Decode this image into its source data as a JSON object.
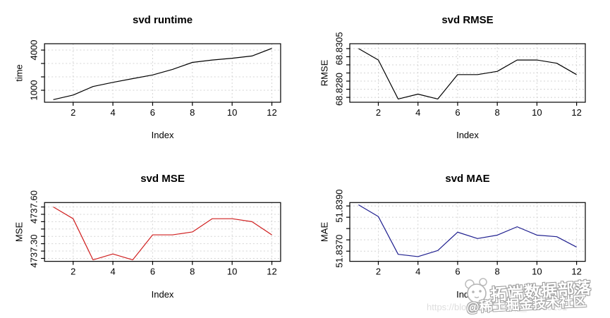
{
  "chart_data": [
    {
      "id": "svd-runtime",
      "type": "line",
      "title": "svd runtime",
      "xlabel": "Index",
      "ylabel": "time",
      "line_color": "#000000",
      "grid": true,
      "x": [
        1,
        2,
        3,
        4,
        5,
        6,
        7,
        8,
        9,
        10,
        11,
        12
      ],
      "values": [
        300,
        640,
        1280,
        1590,
        1870,
        2140,
        2560,
        3080,
        3260,
        3390,
        3560,
        4130
      ],
      "xlim": [
        0.56,
        12.44
      ],
      "ylim": [
        105,
        4475
      ],
      "xticks": [
        {
          "value": 2,
          "label": "2"
        },
        {
          "value": 4,
          "label": "4"
        },
        {
          "value": 6,
          "label": "6"
        },
        {
          "value": 8,
          "label": "8"
        },
        {
          "value": 10,
          "label": "10"
        },
        {
          "value": 12,
          "label": "12"
        }
      ],
      "yticks": [
        {
          "value": 1000,
          "label": "1000"
        },
        {
          "value": 2000,
          "label": ""
        },
        {
          "value": 3000,
          "label": ""
        },
        {
          "value": 4000,
          "label": "4000"
        }
      ]
    },
    {
      "id": "svd-rmse",
      "type": "line",
      "title": "svd RMSE",
      "xlabel": "Index",
      "ylabel": "RMSE",
      "line_color": "#000000",
      "grid": true,
      "x": [
        1,
        2,
        3,
        4,
        5,
        6,
        7,
        8,
        9,
        10,
        11,
        12
      ],
      "values": [
        68.8305,
        68.8298,
        68.8274,
        68.8277,
        68.8274,
        68.8289,
        68.8289,
        68.8291,
        68.8298,
        68.8298,
        68.8296,
        68.8289
      ],
      "xlim": [
        0.56,
        12.44
      ],
      "ylim": [
        68.8272,
        68.8308
      ],
      "xticks": [
        {
          "value": 2,
          "label": "2"
        },
        {
          "value": 4,
          "label": "4"
        },
        {
          "value": 6,
          "label": "6"
        },
        {
          "value": 8,
          "label": "8"
        },
        {
          "value": 10,
          "label": "10"
        },
        {
          "value": 12,
          "label": "12"
        }
      ],
      "yticks": [
        {
          "value": 68.8275,
          "label": ""
        },
        {
          "value": 68.828,
          "label": "68.8280"
        },
        {
          "value": 68.8285,
          "label": ""
        },
        {
          "value": 68.829,
          "label": ""
        },
        {
          "value": 68.8295,
          "label": ""
        },
        {
          "value": 68.83,
          "label": ""
        },
        {
          "value": 68.8305,
          "label": "68.8305"
        }
      ]
    },
    {
      "id": "svd-mse",
      "type": "line",
      "title": "svd MSE",
      "xlabel": "Index",
      "ylabel": "MSE",
      "line_color": "#d02020",
      "grid": true,
      "x": [
        1,
        2,
        3,
        4,
        5,
        6,
        7,
        8,
        9,
        10,
        11,
        12
      ],
      "values": [
        4737.6,
        4737.52,
        4737.24,
        4737.28,
        4737.24,
        4737.41,
        4737.41,
        4737.43,
        4737.52,
        4737.52,
        4737.5,
        4737.41
      ],
      "xlim": [
        0.56,
        12.44
      ],
      "ylim": [
        4737.23,
        4737.63
      ],
      "xticks": [
        {
          "value": 2,
          "label": "2"
        },
        {
          "value": 4,
          "label": "4"
        },
        {
          "value": 6,
          "label": "6"
        },
        {
          "value": 8,
          "label": "8"
        },
        {
          "value": 10,
          "label": "10"
        },
        {
          "value": 12,
          "label": "12"
        }
      ],
      "yticks": [
        {
          "value": 4737.25,
          "label": ""
        },
        {
          "value": 4737.3,
          "label": "4737.30"
        },
        {
          "value": 4737.35,
          "label": ""
        },
        {
          "value": 4737.4,
          "label": ""
        },
        {
          "value": 4737.45,
          "label": ""
        },
        {
          "value": 4737.5,
          "label": ""
        },
        {
          "value": 4737.55,
          "label": ""
        },
        {
          "value": 4737.6,
          "label": "4737.60"
        }
      ]
    },
    {
      "id": "svd-mae",
      "type": "line",
      "title": "svd MAE",
      "xlabel": "Index",
      "ylabel": "MAE",
      "line_color": "#1f1f8f",
      "grid": true,
      "x": [
        1,
        2,
        3,
        4,
        5,
        6,
        7,
        8,
        9,
        10,
        11,
        12
      ],
      "values": [
        51.83905,
        51.83853,
        51.83686,
        51.83676,
        51.83703,
        51.83784,
        51.83756,
        51.83771,
        51.83808,
        51.83771,
        51.83764,
        51.83718
      ],
      "xlim": [
        0.56,
        12.44
      ],
      "ylim": [
        51.83655,
        51.83915
      ],
      "xticks": [
        {
          "value": 2,
          "label": "2"
        },
        {
          "value": 4,
          "label": "4"
        },
        {
          "value": 6,
          "label": "6"
        },
        {
          "value": 8,
          "label": "8"
        },
        {
          "value": 10,
          "label": "10"
        },
        {
          "value": 12,
          "label": "12"
        }
      ],
      "yticks": [
        {
          "value": 51.837,
          "label": "51.8370"
        },
        {
          "value": 51.8375,
          "label": ""
        },
        {
          "value": 51.838,
          "label": ""
        },
        {
          "value": 51.8385,
          "label": ""
        },
        {
          "value": 51.839,
          "label": "51.8390"
        }
      ]
    }
  ],
  "style": {
    "grid_color": "#d4d4d4",
    "axis_color": "#000000",
    "background": "#ffffff"
  },
  "watermark": {
    "logo": "panda-face-icon",
    "main_text": "拓端数据部落",
    "community_text": "@稀土掘金技术社区",
    "url_text": "https://blog.csdn.net/qq_19600251"
  }
}
